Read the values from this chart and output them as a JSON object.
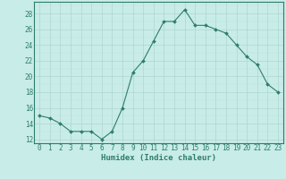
{
  "x": [
    0,
    1,
    2,
    3,
    4,
    5,
    6,
    7,
    8,
    9,
    10,
    11,
    12,
    13,
    14,
    15,
    16,
    17,
    18,
    19,
    20,
    21,
    22,
    23
  ],
  "y": [
    15.0,
    14.7,
    14.0,
    13.0,
    13.0,
    13.0,
    12.0,
    13.0,
    16.0,
    20.5,
    22.0,
    24.5,
    27.0,
    27.0,
    28.5,
    26.5,
    26.5,
    26.0,
    25.5,
    24.0,
    22.5,
    21.5,
    19.0,
    18.0
  ],
  "line_color": "#2e7d6e",
  "marker": "D",
  "marker_size": 2.0,
  "bg_color": "#c8ece8",
  "grid_major_color": "#b0d4d0",
  "grid_minor_color": "#c0e0dc",
  "xlabel": "Humidex (Indice chaleur)",
  "xlim": [
    -0.5,
    23.5
  ],
  "ylim": [
    11.5,
    29.5
  ],
  "yticks": [
    12,
    14,
    16,
    18,
    20,
    22,
    24,
    26,
    28
  ],
  "xtick_labels": [
    "0",
    "1",
    "2",
    "3",
    "4",
    "5",
    "6",
    "7",
    "8",
    "9",
    "10",
    "11",
    "12",
    "13",
    "14",
    "15",
    "16",
    "17",
    "18",
    "19",
    "20",
    "21",
    "22",
    "23"
  ],
  "tick_color": "#2e7d6e",
  "label_fontsize": 6.5,
  "tick_fontsize": 5.5,
  "spine_color": "#2e7d6e"
}
